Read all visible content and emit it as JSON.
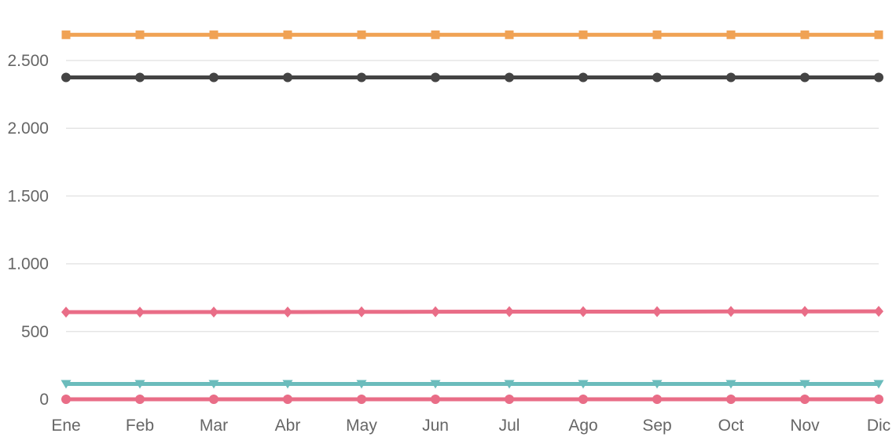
{
  "chart_data": {
    "type": "line",
    "categories": [
      "Ene",
      "Feb",
      "Mar",
      "Abr",
      "May",
      "Jun",
      "Jul",
      "Ago",
      "Sep",
      "Oct",
      "Nov",
      "Dic"
    ],
    "ylim": [
      0,
      2750
    ],
    "yticks": [
      {
        "value": 0,
        "label": "0"
      },
      {
        "value": 500,
        "label": "500"
      },
      {
        "value": 1000,
        "label": "1.000"
      },
      {
        "value": 1500,
        "label": "1.500"
      },
      {
        "value": 2000,
        "label": "2.000"
      },
      {
        "value": 2500,
        "label": "2.500"
      }
    ],
    "grid": true,
    "legend": "none",
    "series": [
      {
        "color": "#f0a254",
        "marker": "square",
        "values": [
          2690,
          2690,
          2690,
          2690,
          2690,
          2690,
          2690,
          2690,
          2690,
          2690,
          2690,
          2690
        ]
      },
      {
        "color": "#444444",
        "marker": "circle",
        "values": [
          2375,
          2375,
          2375,
          2375,
          2375,
          2375,
          2375,
          2375,
          2375,
          2375,
          2375,
          2375
        ]
      },
      {
        "color": "#e96d87",
        "marker": "diamond",
        "values": [
          643,
          643,
          644,
          644,
          645,
          646,
          647,
          647,
          647,
          648,
          648,
          649
        ]
      },
      {
        "color": "#6bbcbc",
        "marker": "triangle-down",
        "values": [
          113,
          113,
          113,
          113,
          113,
          113,
          113,
          113,
          113,
          113,
          113,
          113
        ]
      },
      {
        "color": "#e96d87",
        "marker": "circle",
        "values": [
          0,
          0,
          0,
          0,
          0,
          0,
          0,
          0,
          0,
          0,
          0,
          0
        ]
      }
    ]
  }
}
